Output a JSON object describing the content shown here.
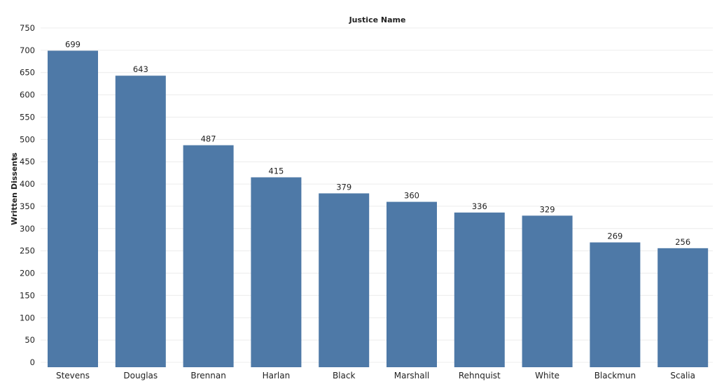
{
  "chart_data": {
    "type": "bar",
    "title": "Justice Name",
    "xlabel": "",
    "ylabel": "Written Dissents",
    "ylabel_sort_icon": "sort-descending-icon",
    "categories": [
      "Stevens",
      "Douglas",
      "Brennan",
      "Harlan",
      "Black",
      "Marshall",
      "Rehnquist",
      "White",
      "Blackmun",
      "Scalia"
    ],
    "values": [
      699,
      643,
      487,
      415,
      379,
      360,
      336,
      329,
      269,
      256
    ],
    "data_labels": [
      "699",
      "643",
      "487",
      "415",
      "379",
      "360",
      "336",
      "329",
      "269",
      "256"
    ],
    "ylim": [
      0,
      750
    ],
    "yticks": [
      0,
      50,
      100,
      150,
      200,
      250,
      300,
      350,
      400,
      450,
      500,
      550,
      600,
      650,
      700,
      750
    ],
    "grid": true,
    "legend": "none",
    "bar_color": "#4e79a7"
  }
}
